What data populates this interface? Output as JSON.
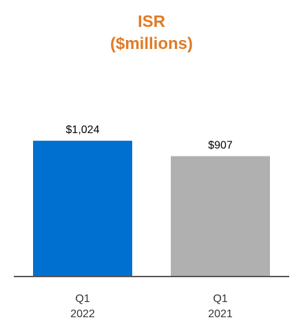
{
  "chart_data": {
    "type": "bar",
    "title": "ISR",
    "subtitle": "($millions)",
    "categories": [
      {
        "line1": "Q1",
        "line2": "2022"
      },
      {
        "line1": "Q1",
        "line2": "2021"
      }
    ],
    "values": [
      1024,
      907
    ],
    "value_labels": [
      "$1,024",
      "$907"
    ],
    "bar_colors": [
      "#0070d0",
      "#b0b0b0"
    ],
    "title_color": "#e07b27",
    "ylim": [
      0,
      1150
    ],
    "grid": false,
    "legend": "none"
  }
}
